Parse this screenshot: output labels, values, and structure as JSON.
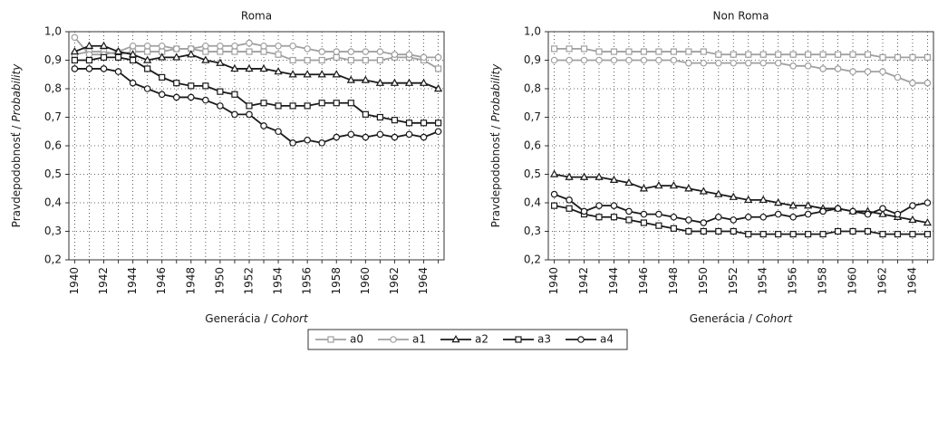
{
  "chart_data": [
    {
      "type": "line",
      "title": "Roma",
      "xlabel": {
        "main": "Generácia /",
        "translation": "Cohort"
      },
      "ylabel": {
        "main": "Pravdepodobnosť /",
        "translation": "Probability"
      },
      "x": [
        1940,
        1941,
        1942,
        1943,
        1944,
        1945,
        1946,
        1947,
        1948,
        1949,
        1950,
        1951,
        1952,
        1953,
        1954,
        1955,
        1956,
        1957,
        1958,
        1959,
        1960,
        1961,
        1962,
        1963,
        1964,
        1965
      ],
      "xlim": [
        1939.6,
        1965.4
      ],
      "xticks": [
        1940,
        1942,
        1944,
        1946,
        1948,
        1950,
        1952,
        1954,
        1956,
        1958,
        1960,
        1962,
        1964
      ],
      "ylim": [
        0.2,
        1.0
      ],
      "yticks": [
        {
          "value": 0.2,
          "label": "0,2"
        },
        {
          "value": 0.3,
          "label": "0,3"
        },
        {
          "value": 0.4,
          "label": "0,4"
        },
        {
          "value": 0.5,
          "label": "0,5"
        },
        {
          "value": 0.6,
          "label": "0,6"
        },
        {
          "value": 0.7,
          "label": "0,7"
        },
        {
          "value": 0.8,
          "label": "0,8"
        },
        {
          "value": 0.9,
          "label": "0,9"
        },
        {
          "value": 1.0,
          "label": "1,0"
        }
      ],
      "grid": true,
      "series": [
        {
          "name": "a0",
          "color": "#a0a0a0",
          "marker": "square",
          "values": [
            0.92,
            0.93,
            0.93,
            0.92,
            0.93,
            0.93,
            0.93,
            0.94,
            0.94,
            0.93,
            0.93,
            0.93,
            0.93,
            0.93,
            0.92,
            0.9,
            0.9,
            0.9,
            0.91,
            0.9,
            0.9,
            0.9,
            0.91,
            0.91,
            0.9,
            0.87
          ]
        },
        {
          "name": "a1",
          "color": "#a0a0a0",
          "marker": "circle",
          "values": [
            0.98,
            0.92,
            0.92,
            0.93,
            0.95,
            0.95,
            0.95,
            0.94,
            0.94,
            0.95,
            0.95,
            0.95,
            0.96,
            0.95,
            0.95,
            0.95,
            0.94,
            0.93,
            0.93,
            0.93,
            0.93,
            0.93,
            0.92,
            0.92,
            0.91,
            0.91
          ]
        },
        {
          "name": "a2",
          "color": "#1a1a1a",
          "marker": "triangle",
          "values": [
            0.93,
            0.95,
            0.95,
            0.93,
            0.92,
            0.9,
            0.91,
            0.91,
            0.92,
            0.9,
            0.89,
            0.87,
            0.87,
            0.87,
            0.86,
            0.85,
            0.85,
            0.85,
            0.85,
            0.83,
            0.83,
            0.82,
            0.82,
            0.82,
            0.82,
            0.8
          ]
        },
        {
          "name": "a3",
          "color": "#1a1a1a",
          "marker": "square",
          "values": [
            0.9,
            0.9,
            0.91,
            0.91,
            0.9,
            0.87,
            0.84,
            0.82,
            0.81,
            0.81,
            0.79,
            0.78,
            0.74,
            0.75,
            0.74,
            0.74,
            0.74,
            0.75,
            0.75,
            0.75,
            0.71,
            0.7,
            0.69,
            0.68,
            0.68,
            0.68
          ]
        },
        {
          "name": "a4",
          "color": "#1a1a1a",
          "marker": "circle",
          "values": [
            0.87,
            0.87,
            0.87,
            0.86,
            0.82,
            0.8,
            0.78,
            0.77,
            0.77,
            0.76,
            0.74,
            0.71,
            0.71,
            0.67,
            0.65,
            0.61,
            0.62,
            0.61,
            0.63,
            0.64,
            0.63,
            0.64,
            0.63,
            0.64,
            0.63,
            0.65
          ]
        }
      ]
    },
    {
      "type": "line",
      "title": "Non Roma",
      "xlabel": {
        "main": "Generácia /",
        "translation": "Cohort"
      },
      "ylabel": {
        "main": "Pravdepodobnosť /",
        "translation": "Probability"
      },
      "x": [
        1940,
        1941,
        1942,
        1943,
        1944,
        1945,
        1946,
        1947,
        1948,
        1949,
        1950,
        1951,
        1952,
        1953,
        1954,
        1955,
        1956,
        1957,
        1958,
        1959,
        1960,
        1961,
        1962,
        1963,
        1964,
        1965
      ],
      "xlim": [
        1939.6,
        1965.4
      ],
      "xticks": [
        1940,
        1942,
        1944,
        1946,
        1948,
        1950,
        1952,
        1954,
        1956,
        1958,
        1960,
        1962,
        1964
      ],
      "ylim": [
        0.2,
        1.0
      ],
      "yticks": [
        {
          "value": 0.2,
          "label": "0,2"
        },
        {
          "value": 0.3,
          "label": "0,3"
        },
        {
          "value": 0.4,
          "label": "0,4"
        },
        {
          "value": 0.5,
          "label": "0,5"
        },
        {
          "value": 0.6,
          "label": "0,6"
        },
        {
          "value": 0.7,
          "label": "0,7"
        },
        {
          "value": 0.8,
          "label": "0,8"
        },
        {
          "value": 0.9,
          "label": "0,9"
        },
        {
          "value": 1.0,
          "label": "1,0"
        }
      ],
      "grid": true,
      "series": [
        {
          "name": "a0",
          "color": "#a0a0a0",
          "marker": "square",
          "values": [
            0.94,
            0.94,
            0.94,
            0.93,
            0.93,
            0.93,
            0.93,
            0.93,
            0.93,
            0.93,
            0.93,
            0.92,
            0.92,
            0.92,
            0.92,
            0.92,
            0.92,
            0.92,
            0.92,
            0.92,
            0.92,
            0.92,
            0.91,
            0.91,
            0.91,
            0.91
          ]
        },
        {
          "name": "a1",
          "color": "#a0a0a0",
          "marker": "circle",
          "values": [
            0.9,
            0.9,
            0.9,
            0.9,
            0.9,
            0.9,
            0.9,
            0.9,
            0.9,
            0.89,
            0.89,
            0.89,
            0.89,
            0.89,
            0.89,
            0.89,
            0.88,
            0.88,
            0.87,
            0.87,
            0.86,
            0.86,
            0.86,
            0.84,
            0.82,
            0.82
          ]
        },
        {
          "name": "a2",
          "color": "#1a1a1a",
          "marker": "triangle",
          "values": [
            0.5,
            0.49,
            0.49,
            0.49,
            0.48,
            0.47,
            0.45,
            0.46,
            0.46,
            0.45,
            0.44,
            0.43,
            0.42,
            0.41,
            0.41,
            0.4,
            0.39,
            0.39,
            0.38,
            0.38,
            0.37,
            0.37,
            0.36,
            0.35,
            0.34,
            0.33
          ]
        },
        {
          "name": "a3",
          "color": "#1a1a1a",
          "marker": "square",
          "values": [
            0.39,
            0.38,
            0.36,
            0.35,
            0.35,
            0.34,
            0.33,
            0.32,
            0.31,
            0.3,
            0.3,
            0.3,
            0.3,
            0.29,
            0.29,
            0.29,
            0.29,
            0.29,
            0.29,
            0.3,
            0.3,
            0.3,
            0.29,
            0.29,
            0.29,
            0.29
          ]
        },
        {
          "name": "a4",
          "color": "#1a1a1a",
          "marker": "circle",
          "values": [
            0.43,
            0.41,
            0.37,
            0.39,
            0.39,
            0.37,
            0.36,
            0.36,
            0.35,
            0.34,
            0.33,
            0.35,
            0.34,
            0.35,
            0.35,
            0.36,
            0.35,
            0.36,
            0.37,
            0.38,
            0.37,
            0.36,
            0.38,
            0.36,
            0.39,
            0.4
          ]
        }
      ]
    }
  ]
}
